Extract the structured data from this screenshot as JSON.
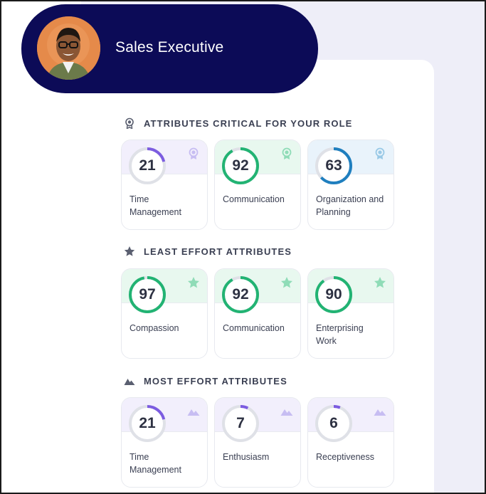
{
  "header": {
    "role_title": "Sales Executive"
  },
  "sections": [
    {
      "title": "ATTRIBUTES CRITICAL FOR YOUR ROLE",
      "icon": "award-icon",
      "tiles": [
        {
          "score": "21",
          "label": "Time Management",
          "color": "#7c5ce0",
          "tint": "#f2effc",
          "badge_color": "#c7bdf2"
        },
        {
          "score": "92",
          "label": "Communication",
          "color": "#22b373",
          "tint": "#e8f8ef",
          "badge_color": "#8fdcb7"
        },
        {
          "score": "63",
          "label": "Organization and Planning",
          "color": "#1f7fbf",
          "tint": "#e9f3fb",
          "badge_color": "#99c9e6"
        }
      ]
    },
    {
      "title": "LEAST EFFORT ATTRIBUTES",
      "icon": "star-icon",
      "tiles": [
        {
          "score": "97",
          "label": "Compassion",
          "color": "#22b373",
          "tint": "#e8f8ef",
          "badge_color": "#8fdcb7"
        },
        {
          "score": "92",
          "label": "Communication",
          "color": "#22b373",
          "tint": "#e8f8ef",
          "badge_color": "#8fdcb7"
        },
        {
          "score": "90",
          "label": "Enterprising Work",
          "color": "#22b373",
          "tint": "#e8f8ef",
          "badge_color": "#8fdcb7"
        }
      ]
    },
    {
      "title": "MOST EFFORT ATTRIBUTES",
      "icon": "mountain-icon",
      "tiles": [
        {
          "score": "21",
          "label": "Time Management",
          "color": "#7c5ce0",
          "tint": "#f2effc",
          "badge_color": "#c7bdf2"
        },
        {
          "score": "7",
          "label": "Enthusiasm",
          "color": "#7c5ce0",
          "tint": "#f2effc",
          "badge_color": "#c7bdf2"
        },
        {
          "score": "6",
          "label": "Receptiveness",
          "color": "#7c5ce0",
          "tint": "#f2effc",
          "badge_color": "#c7bdf2"
        }
      ]
    }
  ]
}
